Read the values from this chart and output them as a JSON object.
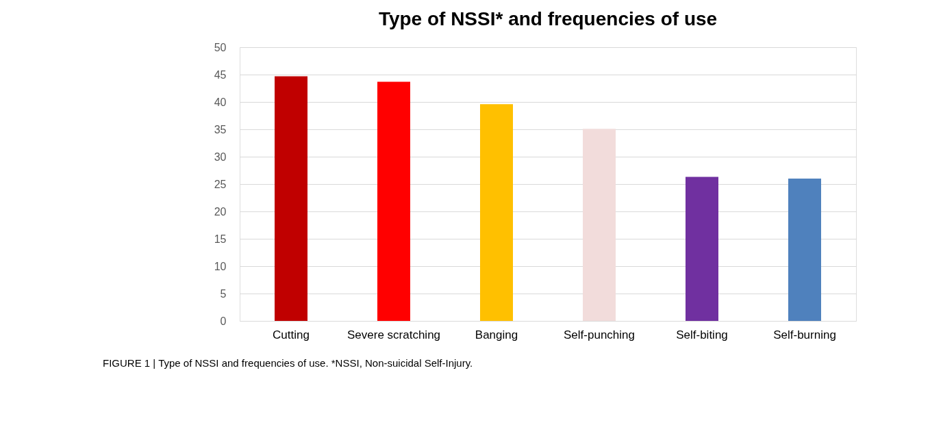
{
  "chart_data": {
    "type": "bar",
    "title": "Type of NSSI* and frequencies of use",
    "categories": [
      "Cutting",
      "Severe scratching",
      "Banging",
      "Self-punching",
      "Self-biting",
      "Self-burning"
    ],
    "values": [
      44.7,
      43.7,
      39.6,
      35.1,
      26.3,
      26.0
    ],
    "colors": [
      "#c00000",
      "#ff0000",
      "#ffc000",
      "#f2dcdb",
      "#7030a0",
      "#4f81bd"
    ],
    "ylim": [
      0,
      50
    ],
    "yticks": [
      0,
      5,
      10,
      15,
      20,
      25,
      30,
      35,
      40,
      45,
      50
    ],
    "grid": "y",
    "annotations": [
      "FIGURE 1 | Type of NSSI and frequencies of use. *NSSI, Non-suicidal Self-Injury."
    ]
  }
}
